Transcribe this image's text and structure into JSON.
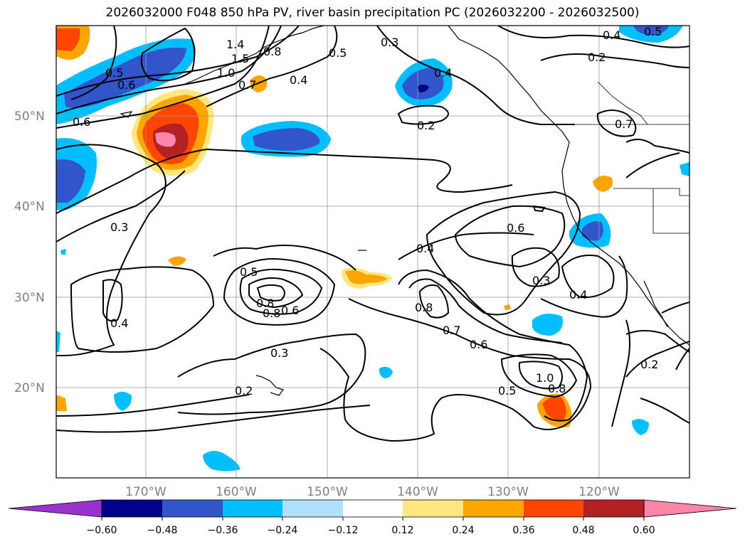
{
  "title": "2026032000 F048 850 hPa PV, river basin precipitation PC (2026032200 - 2026032500)",
  "map": {
    "lat_labels": [
      "50°N",
      "40°N",
      "30°N",
      "20°N"
    ],
    "lon_labels": [
      "170°W",
      "160°W",
      "150°W",
      "140°W",
      "130°W",
      "120°W"
    ],
    "contour_labels": [
      "1.4",
      "1.5",
      "0.8",
      "1.0",
      "0.7",
      "0.5",
      "0.3",
      "0.4",
      "0.5",
      "0.6",
      "0.5",
      "0.6",
      "0.4",
      "0.2",
      "0.4",
      "0.2",
      "0.7",
      "0.3",
      "0.4",
      "0.6",
      "0.3",
      "0.4",
      "0.5",
      "0.8",
      "0.8",
      "0.6",
      "0.3",
      "0.2",
      "0.8",
      "0.7",
      "0.6",
      "1.0",
      "0.8",
      "0.5",
      "0.2",
      "0.4"
    ]
  },
  "colorbar": {
    "colors": [
      "#9933cc",
      "#00008b",
      "#3355cc",
      "#00bfff",
      "#b0e0ff",
      "#ffffff",
      "#ffe680",
      "#ffa500",
      "#ff4500",
      "#b22222",
      "#ff85a8"
    ],
    "tick_labels": [
      "−0.60",
      "−0.48",
      "−0.36",
      "−0.24",
      "−0.12",
      "0.12",
      "0.24",
      "0.36",
      "0.48",
      "0.60"
    ]
  }
}
